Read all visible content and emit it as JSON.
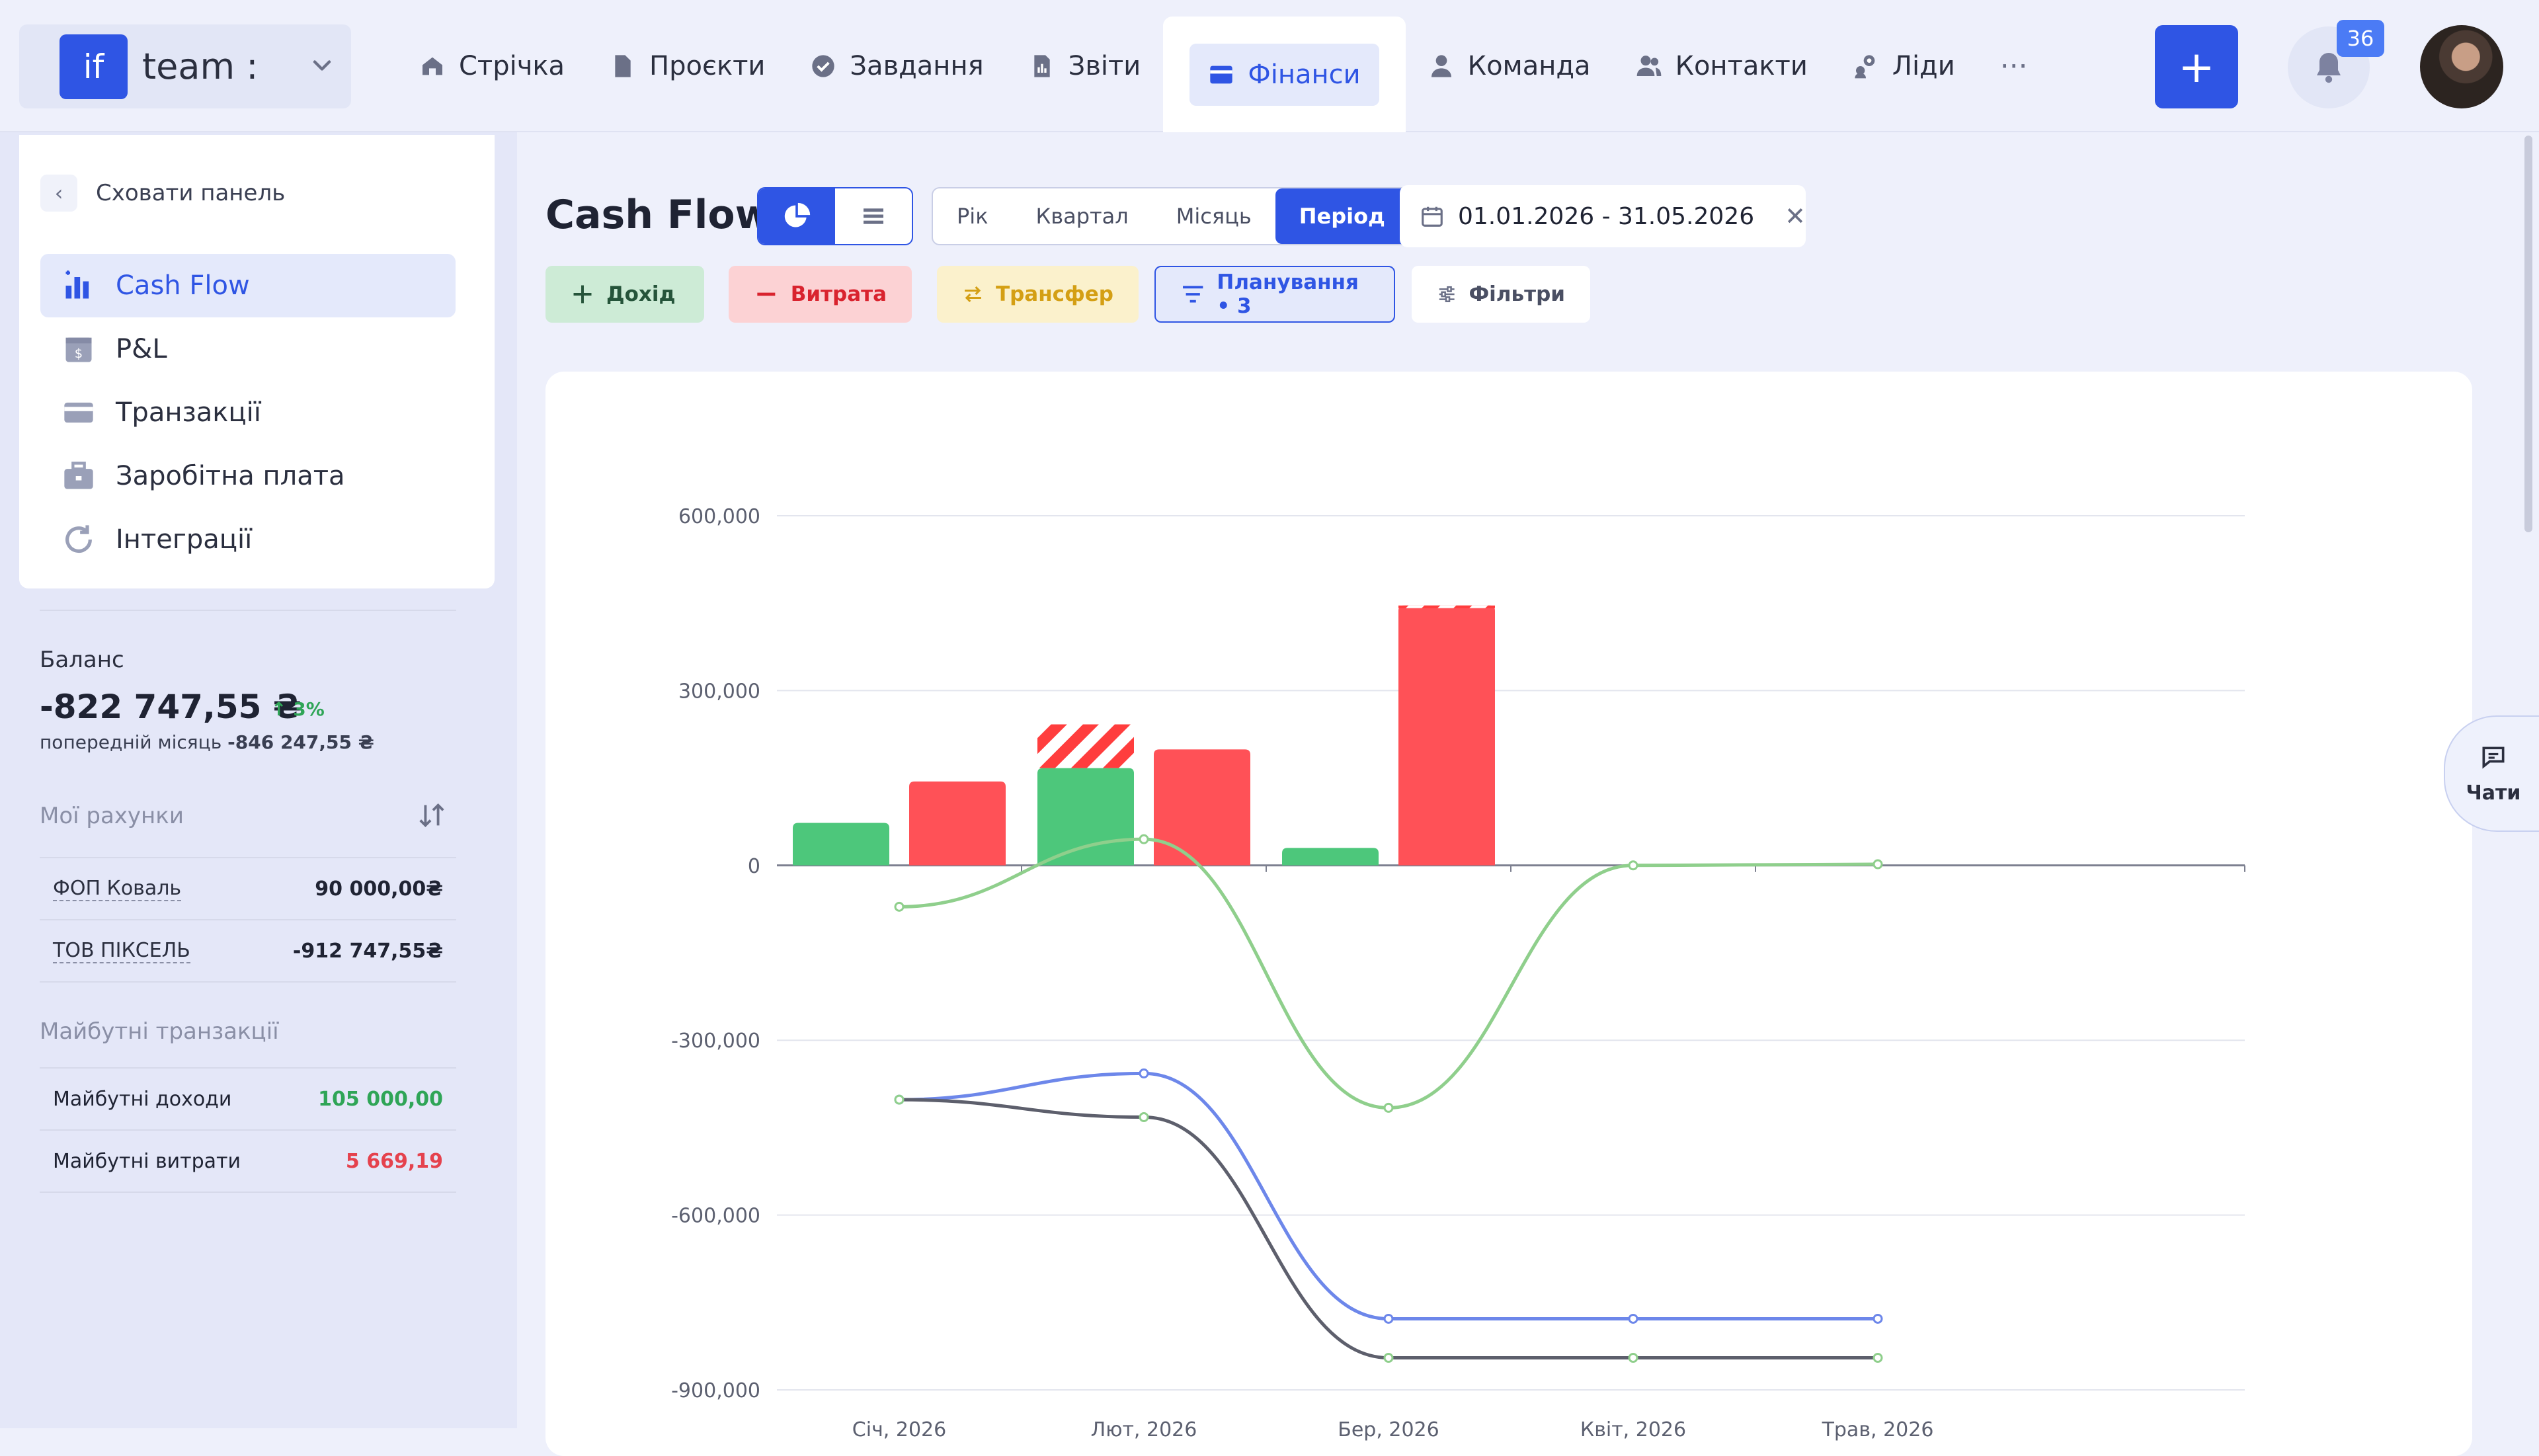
{
  "app": {
    "logo_text": "if",
    "team_name": "team :"
  },
  "nav": {
    "items": [
      {
        "label": "Стрічка",
        "icon": "home-icon"
      },
      {
        "label": "Проєкти",
        "icon": "file-icon"
      },
      {
        "label": "Завдання",
        "icon": "check-circle-icon"
      },
      {
        "label": "Звіти",
        "icon": "report-icon"
      },
      {
        "label": "Фінанси",
        "icon": "card-icon",
        "active": true
      },
      {
        "label": "Команда",
        "icon": "person-icon"
      },
      {
        "label": "Контакти",
        "icon": "people-icon"
      },
      {
        "label": "Ліди",
        "icon": "leads-icon"
      }
    ],
    "more": "···",
    "add_label": "+",
    "notifications_count": "36"
  },
  "sidebar": {
    "hide_panel": "Сховати панель",
    "menu": [
      {
        "label": "Cash Flow",
        "icon": "bar-chart-icon",
        "active": true
      },
      {
        "label": "P&L",
        "icon": "calendar-dollar-icon"
      },
      {
        "label": "Транзакції",
        "icon": "card-icon"
      },
      {
        "label": "Заробітна плата",
        "icon": "briefcase-icon"
      },
      {
        "label": "Інтеграції",
        "icon": "sync-icon"
      }
    ],
    "balance": {
      "title": "Баланс",
      "value": "-822 747,55 ₴",
      "change": "↑ 3%",
      "prev_label": "попередній місяць",
      "prev_value": "-846 247,55 ₴"
    },
    "accounts_title": "Мої рахунки",
    "accounts": [
      {
        "name": "ФОП Коваль",
        "value": "90 000,00₴"
      },
      {
        "name": "ТОВ ПІКСЕЛЬ",
        "value": "-912 747,55₴"
      }
    ],
    "future_title": "Майбутні транзакції",
    "future": [
      {
        "name": "Майбутні доходи",
        "value": "105 000,00",
        "kind": "pos"
      },
      {
        "name": "Майбутні витрати",
        "value": "5 669,19",
        "kind": "neg"
      }
    ]
  },
  "main": {
    "title": "Cash Flow",
    "period_tabs": [
      "Рік",
      "Квартал",
      "Місяць",
      "Період"
    ],
    "active_period": "Період",
    "date_range": "01.01.2026 - 31.05.2026",
    "actions": {
      "income": "Дохід",
      "expense": "Витрата",
      "transfer": "Трансфер",
      "planning": "Планування • 3",
      "filters": "Фільтри"
    },
    "chats": "Чати"
  },
  "colors": {
    "accent": "#2f55e4",
    "income": "#4dc77b",
    "expense": "#ff5157",
    "net_line": "#8fcf8c",
    "balance_blue": "#6d87ea",
    "balance_dark": "#5d5f6c"
  },
  "chart_data": {
    "type": "bar",
    "categories": [
      "Січ, 2026",
      "Лют, 2026",
      "Бер, 2026",
      "Квіт, 2026",
      "Трав, 2026"
    ],
    "y_ticks": [
      "600,000",
      "300,000",
      "0",
      "-300,000",
      "-600,000",
      "-900,000"
    ],
    "ylim": [
      -900000,
      600000
    ],
    "series": [
      {
        "type": "bar",
        "values": [
          73000,
          167000,
          30000,
          0,
          0
        ],
        "color": "#4dc77b"
      },
      {
        "type": "bar-planned",
        "values": [
          0,
          75000,
          0,
          0,
          0
        ],
        "color": "#ff3d3d"
      },
      {
        "type": "bar",
        "values": [
          144000,
          199000,
          446000,
          0,
          0
        ],
        "color": "#ff5157"
      },
      {
        "type": "line",
        "values": [
          -71000,
          45000,
          -416000,
          0,
          2000
        ],
        "color": "#8fcf8c"
      },
      {
        "type": "line",
        "values": [
          -402000,
          -357000,
          -778000,
          -778000,
          -778000
        ],
        "color": "#6d87ea"
      },
      {
        "type": "line",
        "values": [
          -402000,
          -432000,
          -845000,
          -845000,
          -845000
        ],
        "color": "#5d5f6c"
      }
    ],
    "grid": true
  }
}
